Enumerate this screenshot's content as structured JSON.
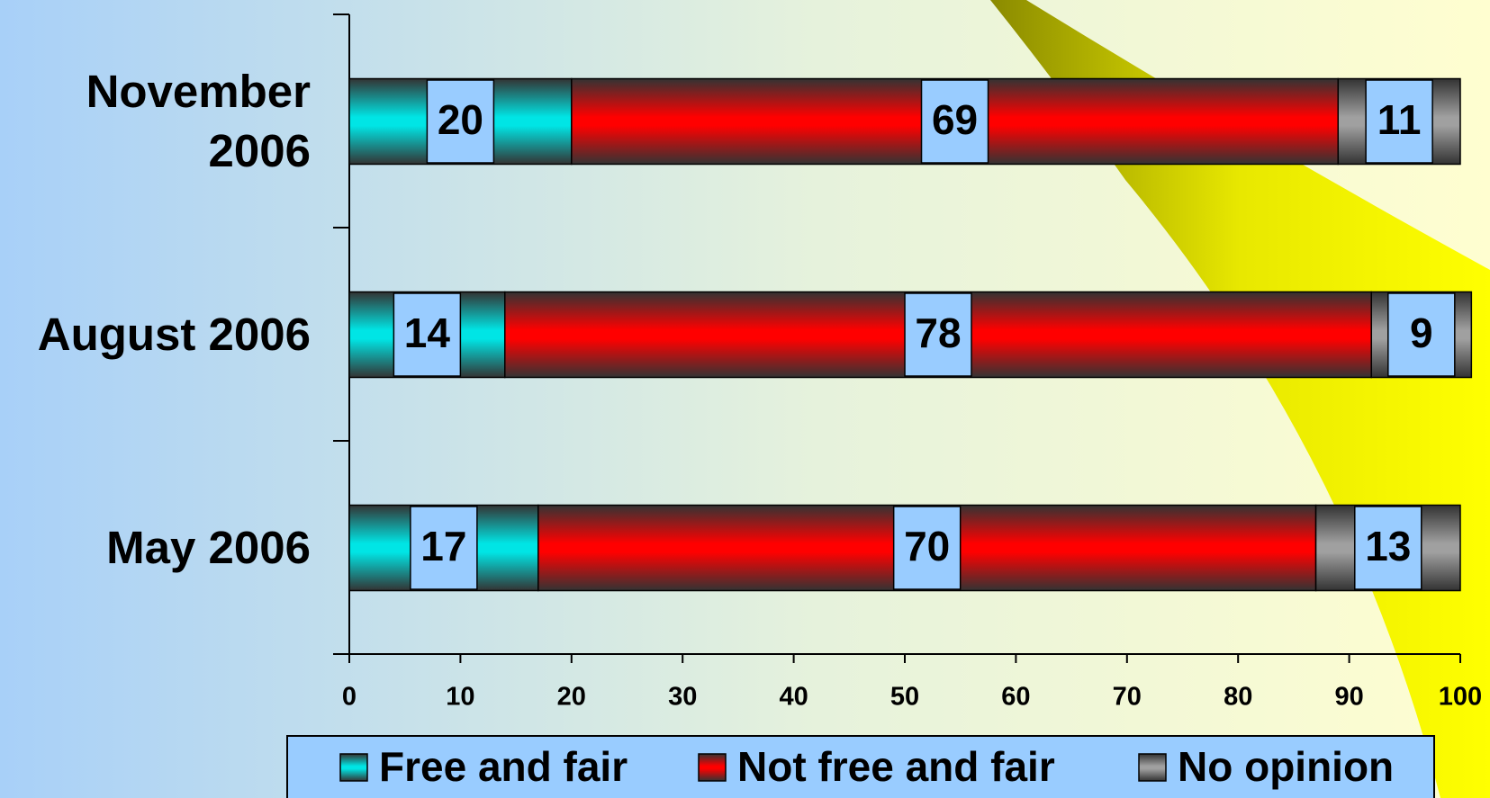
{
  "chart_data": {
    "type": "stacked-bar-horizontal",
    "categories": [
      "November 2006",
      "August 2006",
      "May 2006"
    ],
    "series": [
      {
        "name": "Free and fair",
        "color": "#00e5e5",
        "values": [
          20,
          14,
          17
        ]
      },
      {
        "name": "Not free and fair",
        "color": "#ff0000",
        "values": [
          69,
          78,
          70
        ]
      },
      {
        "name": "No opinion",
        "color": "#a0a0a0",
        "values": [
          11,
          9,
          13
        ]
      }
    ],
    "xlim": [
      0,
      100
    ],
    "xticks": [
      0,
      10,
      20,
      30,
      40,
      50,
      60,
      70,
      80,
      90,
      100
    ]
  }
}
